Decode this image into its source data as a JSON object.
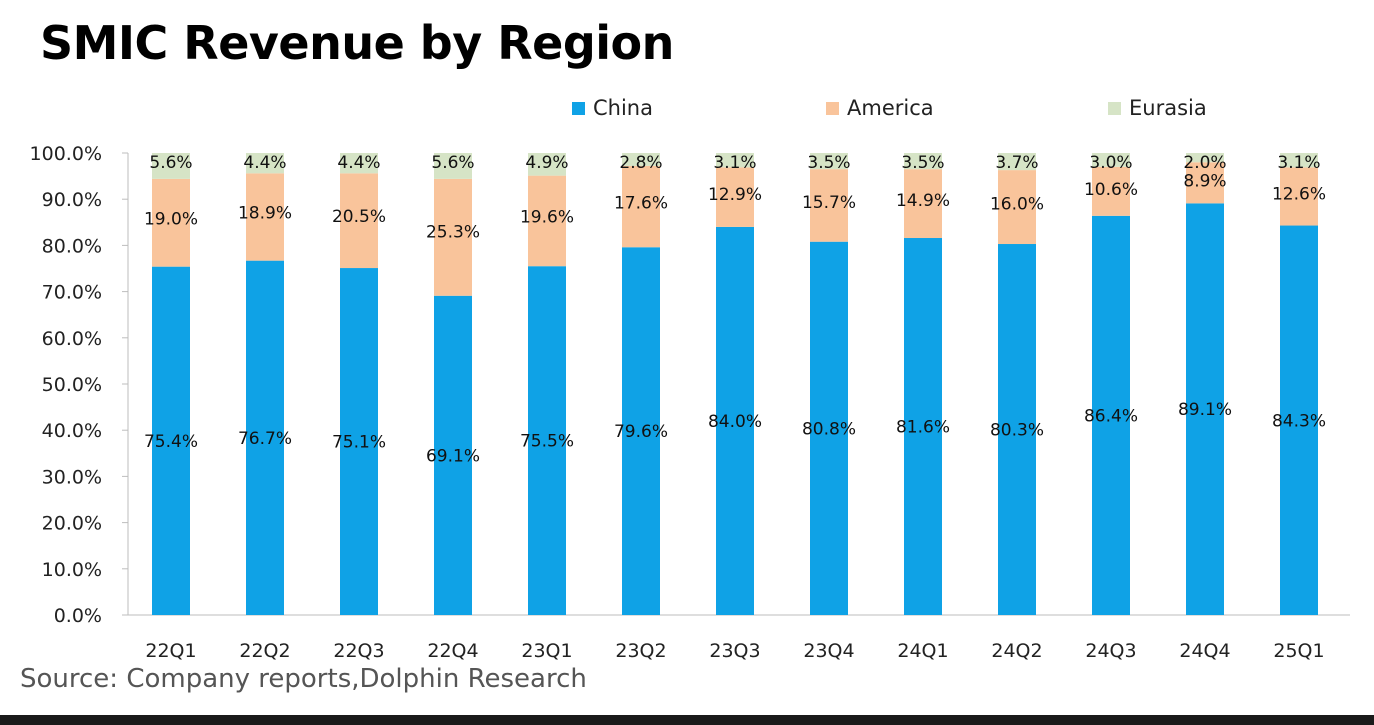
{
  "title": "SMIC Revenue by Region",
  "source": "Source: Company reports,Dolphin Research",
  "chart_data": {
    "type": "bar",
    "stacked": true,
    "title": "SMIC Revenue by Region",
    "categories": [
      "22Q1",
      "22Q2",
      "22Q3",
      "22Q4",
      "23Q1",
      "23Q2",
      "23Q3",
      "23Q4",
      "24Q1",
      "24Q2",
      "24Q3",
      "24Q4",
      "25Q1"
    ],
    "series": [
      {
        "name": "China",
        "color": "#0FA2E6",
        "values": [
          75.4,
          76.7,
          75.1,
          69.1,
          75.5,
          79.6,
          84.0,
          80.8,
          81.6,
          80.3,
          86.4,
          89.1,
          84.3
        ]
      },
      {
        "name": "America",
        "color": "#F9C49B",
        "values": [
          19.0,
          18.9,
          20.5,
          25.3,
          19.6,
          17.6,
          12.9,
          15.7,
          14.9,
          16.0,
          10.6,
          8.9,
          12.6
        ]
      },
      {
        "name": "Eurasia",
        "color": "#D6E4C6",
        "values": [
          5.6,
          4.4,
          4.4,
          5.6,
          4.9,
          2.8,
          3.1,
          3.5,
          3.5,
          3.7,
          3.0,
          2.0,
          3.1
        ]
      }
    ],
    "ylim": [
      0,
      100
    ],
    "yticks": [
      "0.0%",
      "10.0%",
      "20.0%",
      "30.0%",
      "40.0%",
      "50.0%",
      "60.0%",
      "70.0%",
      "80.0%",
      "90.0%",
      "100.0%"
    ],
    "value_suffix": "%",
    "legend_position": "top",
    "grid": false
  }
}
